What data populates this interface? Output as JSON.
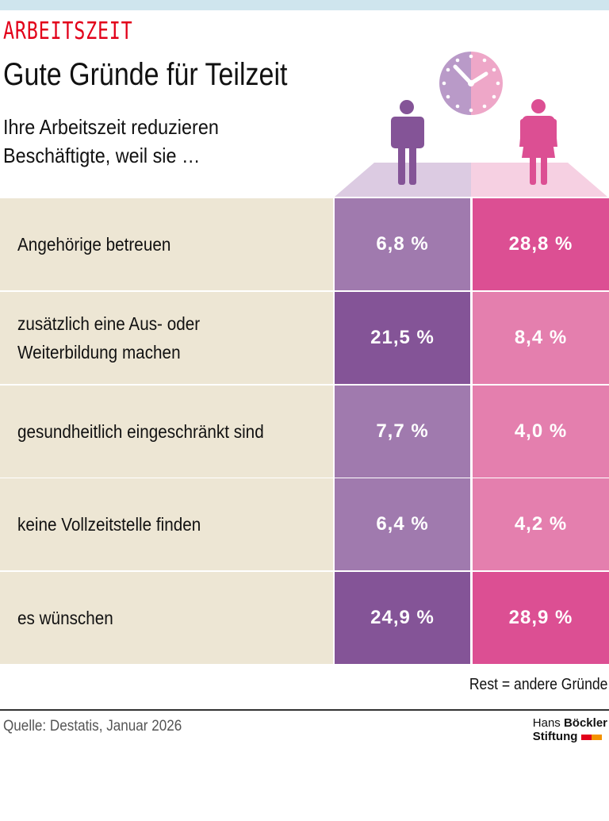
{
  "header": {
    "kicker": "ARBEITSZEIT",
    "title": "Gute Gründe für Teilzeit",
    "subtitle_line1": "Ihre Arbeitszeit reduzieren",
    "subtitle_line2": "Beschäftigte, weil sie …"
  },
  "colors": {
    "kicker": "#e2001a",
    "label_bg": "#ede6d4",
    "men_light": "#a07aae",
    "men_dark": "#845497",
    "women_dark": "#dc4f93",
    "women_light": "#e47fae"
  },
  "icons": {
    "clock": "clock-icon",
    "men": "man-icon",
    "women": "woman-icon"
  },
  "chart_data": {
    "type": "table",
    "columns": [
      "Männer",
      "Frauen"
    ],
    "rows": [
      {
        "label": "Angehörige betreuen",
        "men": "6,8 %",
        "women": "28,8 %",
        "men_value": 6.8,
        "women_value": 28.8
      },
      {
        "label": "zusätzlich eine Aus- oder Weiterbildung machen",
        "men": "21,5 %",
        "women": "8,4 %",
        "men_value": 21.5,
        "women_value": 8.4
      },
      {
        "label": "gesundheitlich eingeschränkt sind",
        "men": "7,7 %",
        "women": "4,0 %",
        "men_value": 7.7,
        "women_value": 4.0
      },
      {
        "label": "keine Vollzeitstelle finden",
        "men": "6,4 %",
        "women": "4,2 %",
        "men_value": 6.4,
        "women_value": 4.2
      },
      {
        "label": "es wünschen",
        "men": "24,9 %",
        "women": "28,9 %",
        "men_value": 24.9,
        "women_value": 28.9
      }
    ]
  },
  "footer": {
    "note": "Rest = andere Gründe",
    "source": "Quelle: Destatis, Januar 2026",
    "logo_line1a": "Hans",
    "logo_line1b": "Böckler",
    "logo_line2": "Stiftung"
  }
}
